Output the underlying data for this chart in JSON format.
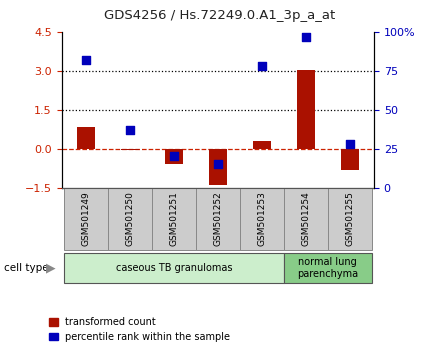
{
  "title": "GDS4256 / Hs.72249.0.A1_3p_a_at",
  "samples": [
    "GSM501249",
    "GSM501250",
    "GSM501251",
    "GSM501252",
    "GSM501253",
    "GSM501254",
    "GSM501255"
  ],
  "red_values": [
    0.82,
    -0.05,
    -0.6,
    -1.4,
    0.3,
    3.02,
    -0.82
  ],
  "blue_pct": [
    82,
    37,
    20,
    15,
    78,
    97,
    28
  ],
  "ylim_left": [
    -1.5,
    4.5
  ],
  "ylim_right": [
    0,
    100
  ],
  "left_ticks": [
    -1.5,
    0,
    1.5,
    3,
    4.5
  ],
  "right_ticks": [
    0,
    25,
    50,
    75,
    100
  ],
  "hlines_dotted": [
    1.5,
    3.0
  ],
  "cell_types": [
    {
      "label": "caseous TB granulomas",
      "start": 0,
      "end": 5,
      "color": "#cceecc"
    },
    {
      "label": "normal lung\nparenchyma",
      "start": 5,
      "end": 7,
      "color": "#88cc88"
    }
  ],
  "bar_color": "#aa1100",
  "dot_color": "#0000bb",
  "zero_line_color": "#cc2200",
  "left_label_color": "#cc2200",
  "right_label_color": "#0000bb",
  "bar_width": 0.4,
  "dot_size": 40,
  "legend_red": "transformed count",
  "legend_blue": "percentile rank within the sample",
  "label_box_color": "#cccccc",
  "label_box_edge": "#888888"
}
